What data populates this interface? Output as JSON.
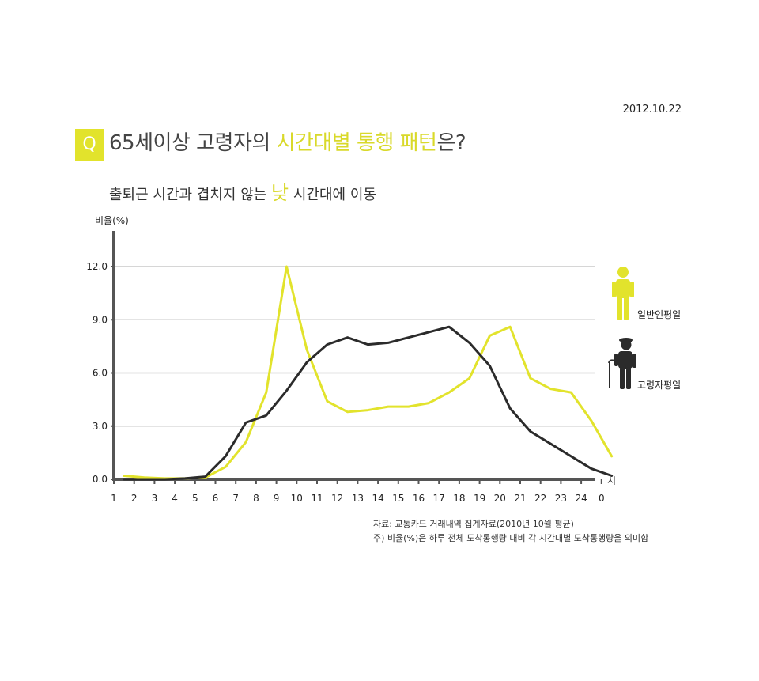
{
  "header": {
    "date": "2012.10.22",
    "q_label": "Q",
    "title_part1": "65세이상 고령자의 ",
    "title_highlight": "시간대별 통행 패턴",
    "title_part2": "은?",
    "subtitle_part1": "출퇴근 시간과 겹치지 않는 ",
    "subtitle_highlight": "낮",
    "subtitle_part2": " 시간대에 이동"
  },
  "colors": {
    "general": "#e2e32c",
    "elderly": "#2b2b2b",
    "grid": "#c8c8c8",
    "axis": "#555555"
  },
  "icons": {
    "general": "person-icon",
    "elderly": "elderly-person-with-cane-icon"
  },
  "chart_data": {
    "type": "line",
    "ylabel": "비율(%)",
    "xlabel": "시",
    "ylim": [
      0,
      12
    ],
    "yticks": [
      "0.0",
      "3.0",
      "6.0",
      "9.0",
      "12.0"
    ],
    "grid": true,
    "legend_position": "right",
    "x": [
      "1",
      "2",
      "3",
      "4",
      "5",
      "6",
      "7",
      "8",
      "9",
      "10",
      "11",
      "12",
      "13",
      "14",
      "15",
      "16",
      "17",
      "18",
      "19",
      "20",
      "21",
      "22",
      "23",
      "24",
      "0"
    ],
    "series": [
      {
        "name": "일반인평일",
        "values": [
          0.2,
          0.1,
          0.05,
          0.05,
          0.1,
          0.7,
          2.1,
          4.9,
          12.0,
          7.3,
          4.4,
          3.8,
          3.9,
          4.1,
          4.1,
          4.3,
          4.9,
          5.7,
          8.1,
          8.6,
          5.7,
          5.1,
          4.9,
          3.3,
          1.3
        ]
      },
      {
        "name": "고령자평일",
        "values": [
          0.0,
          0.0,
          0.0,
          0.05,
          0.15,
          1.3,
          3.2,
          3.6,
          5.0,
          6.6,
          7.6,
          8.0,
          7.6,
          7.7,
          8.0,
          8.3,
          8.6,
          7.7,
          6.4,
          4.0,
          2.7,
          2.0,
          1.3,
          0.6,
          0.2
        ]
      }
    ]
  },
  "source": {
    "line1": "자료: 교통카드 거래내역 집계자료(2010년 10월 평균)",
    "line2": "주) 비율(%)은 하루 전체 도착통행량 대비 각 시간대별 도착통행량을 의미함"
  }
}
